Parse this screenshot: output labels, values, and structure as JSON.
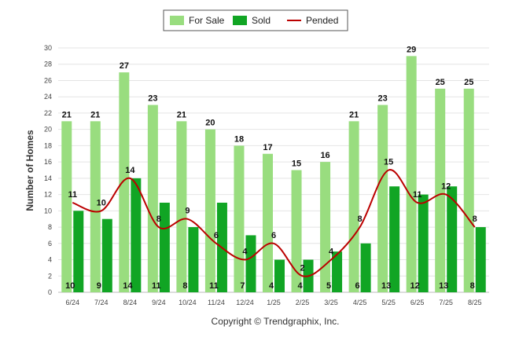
{
  "chart_data": {
    "type": "bar",
    "categories": [
      "6/24",
      "7/24",
      "8/24",
      "9/24",
      "10/24",
      "11/24",
      "12/24",
      "1/25",
      "2/25",
      "3/25",
      "4/25",
      "5/25",
      "6/25",
      "7/25",
      "8/25"
    ],
    "series": [
      {
        "name": "For Sale",
        "type": "bar",
        "color": "#99dd7f",
        "values": [
          21,
          21,
          27,
          23,
          21,
          20,
          18,
          17,
          15,
          16,
          21,
          23,
          29,
          25,
          25
        ]
      },
      {
        "name": "Sold",
        "type": "bar",
        "color": "#11a524",
        "values": [
          10,
          9,
          14,
          11,
          8,
          11,
          7,
          4,
          4,
          5,
          6,
          13,
          12,
          13,
          8
        ]
      },
      {
        "name": "Pended",
        "type": "line",
        "color": "#bb0000",
        "values": [
          11,
          10,
          14,
          8,
          9,
          6,
          4,
          6,
          2,
          4,
          8,
          15,
          11,
          12,
          8
        ]
      }
    ],
    "ylabel": "Number of Homes",
    "ylim": [
      0,
      30
    ],
    "yticks": [
      0,
      2,
      4,
      6,
      8,
      10,
      12,
      14,
      16,
      18,
      20,
      22,
      24,
      26,
      28,
      30
    ],
    "grid": true,
    "legend_position": "top-center",
    "credit": "Copyright © Trendgraphix, Inc."
  }
}
